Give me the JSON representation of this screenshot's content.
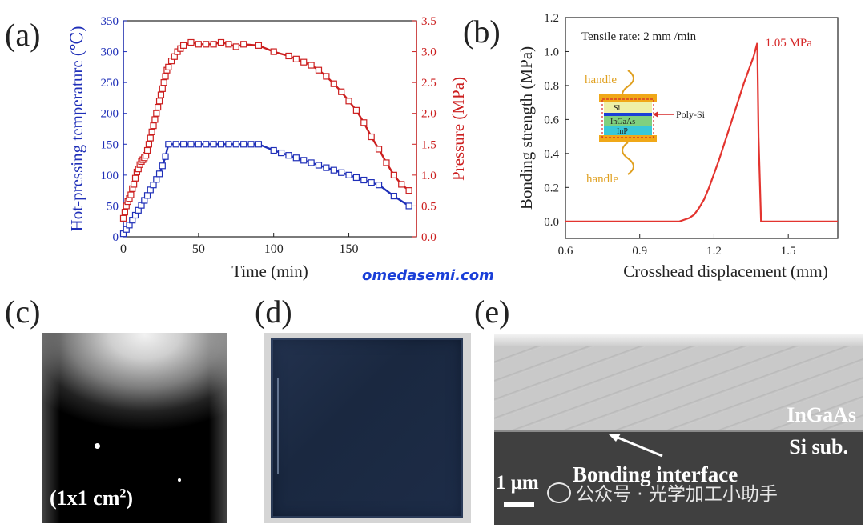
{
  "panels": {
    "a": {
      "label": "(a)"
    },
    "b": {
      "label": "(b)"
    },
    "c": {
      "label": "(c)",
      "caption_main": "(1x1 cm",
      "caption_sup": "2",
      "caption_end": ")"
    },
    "d": {
      "label": "(d)"
    },
    "e": {
      "label": "(e)",
      "layer_top": "InGaAs",
      "layer_bottom": "Si sub.",
      "interface": "Bonding interface",
      "scalebar": "1 μm"
    }
  },
  "watermark": {
    "site": "omedasemi.com",
    "wechat": "公众号 · 光学加工小助手"
  },
  "colors": {
    "blue": "#1f2fb8",
    "red": "#cc1f1f",
    "axis": "#222222"
  },
  "chart_data": [
    {
      "type": "line",
      "title": "",
      "xlabel": "Time (min)",
      "ylabel_left": "Hot-pressing temperature (℃)",
      "ylabel_right": "Pressure (MPa)",
      "xlim": [
        0,
        195
      ],
      "ylim_left": [
        0,
        350
      ],
      "ylim_right": [
        0,
        3.5
      ],
      "xticks": [
        "0",
        "50",
        "100",
        "150"
      ],
      "yticks_left": [
        "0",
        "50",
        "100",
        "150",
        "200",
        "250",
        "300",
        "350"
      ],
      "yticks_right": [
        "0.0",
        "0.5",
        "1.0",
        "1.5",
        "2.0",
        "2.5",
        "3.0",
        "3.5"
      ],
      "series": [
        {
          "name": "Temperature",
          "axis": "left",
          "color": "#1f2fb8",
          "x": [
            0,
            2,
            4,
            6,
            8,
            10,
            12,
            14,
            16,
            18,
            20,
            22,
            24,
            26,
            28,
            30,
            35,
            40,
            45,
            50,
            55,
            60,
            65,
            70,
            75,
            80,
            85,
            90,
            100,
            105,
            110,
            115,
            120,
            125,
            130,
            135,
            140,
            145,
            150,
            155,
            160,
            165,
            170,
            180,
            190
          ],
          "y": [
            5,
            12,
            19,
            27,
            35,
            43,
            51,
            59,
            67,
            76,
            84,
            93,
            102,
            115,
            130,
            150,
            150,
            150,
            150,
            150,
            150,
            150,
            150,
            150,
            150,
            150,
            150,
            150,
            140,
            136,
            132,
            128,
            124,
            120,
            116,
            112,
            108,
            104,
            100,
            96,
            92,
            88,
            84,
            66,
            50
          ]
        },
        {
          "name": "Pressure",
          "axis": "right",
          "color": "#cc1f1f",
          "x": [
            0,
            1,
            2,
            3,
            4,
            5,
            6,
            7,
            8,
            9,
            10,
            11,
            12,
            13,
            14,
            15,
            16,
            17,
            18,
            19,
            20,
            21,
            22,
            23,
            24,
            25,
            26,
            27,
            28,
            29,
            30,
            32,
            34,
            36,
            38,
            40,
            45,
            50,
            55,
            60,
            65,
            70,
            75,
            80,
            90,
            100,
            110,
            115,
            120,
            125,
            130,
            135,
            140,
            145,
            150,
            155,
            160,
            165,
            170,
            175,
            180,
            185,
            190
          ],
          "y": [
            0.3,
            0.4,
            0.5,
            0.57,
            0.62,
            0.68,
            0.78,
            0.85,
            0.95,
            1.05,
            1.1,
            1.17,
            1.22,
            1.25,
            1.28,
            1.32,
            1.4,
            1.5,
            1.6,
            1.7,
            1.8,
            1.9,
            2.0,
            2.1,
            2.2,
            2.3,
            2.4,
            2.5,
            2.6,
            2.7,
            2.75,
            2.85,
            2.92,
            3.0,
            3.05,
            3.1,
            3.15,
            3.12,
            3.12,
            3.12,
            3.15,
            3.12,
            3.08,
            3.12,
            3.1,
            3.0,
            2.93,
            2.88,
            2.83,
            2.78,
            2.7,
            2.6,
            2.48,
            2.35,
            2.2,
            2.05,
            1.85,
            1.62,
            1.42,
            1.2,
            1.0,
            0.85,
            0.75
          ]
        }
      ]
    },
    {
      "type": "line",
      "title": "",
      "xlabel": "Crosshead displacement (mm)",
      "ylabel": "Bonding strength (MPa)",
      "xlim": [
        0.6,
        1.7
      ],
      "ylim": [
        -0.1,
        1.2
      ],
      "xticks": [
        "0.6",
        "0.9",
        "1.2",
        "1.5"
      ],
      "yticks": [
        "0.0",
        "0.2",
        "0.4",
        "0.6",
        "0.8",
        "1.0",
        "1.2"
      ],
      "annotation": "Tensile rate: 2 mm /min",
      "peak_label": "1.05 MPa",
      "inset_labels": {
        "handle": "handle",
        "si": "Si",
        "ingaas": "InGaAs",
        "inp": "InP",
        "polysi": "Poly-Si"
      },
      "series": [
        {
          "name": "Bonding strength",
          "color": "#e3342f",
          "x": [
            0.6,
            1.06,
            1.08,
            1.1,
            1.12,
            1.14,
            1.16,
            1.18,
            1.2,
            1.22,
            1.24,
            1.26,
            1.28,
            1.3,
            1.32,
            1.34,
            1.36,
            1.375,
            1.38,
            1.39,
            1.7
          ],
          "y": [
            0.0,
            0.0,
            0.01,
            0.02,
            0.04,
            0.08,
            0.13,
            0.2,
            0.28,
            0.36,
            0.45,
            0.54,
            0.63,
            0.72,
            0.81,
            0.89,
            0.97,
            1.05,
            0.5,
            0.0,
            0.0
          ]
        }
      ]
    }
  ]
}
